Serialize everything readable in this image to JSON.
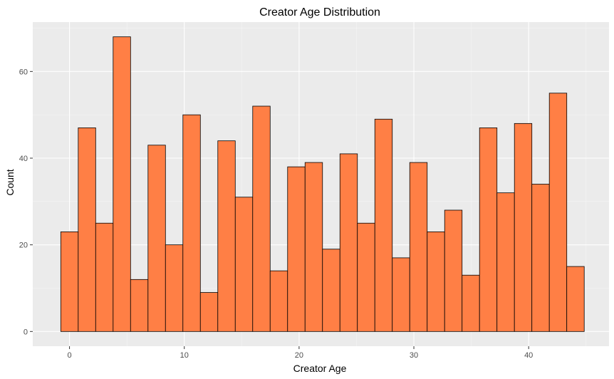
{
  "chart_data": {
    "type": "bar",
    "subtype": "histogram",
    "title": "Creator Age Distribution",
    "xlabel": "Creator Age",
    "ylabel": "Count",
    "bin_width": 1.52,
    "bin_start": -0.76,
    "values": [
      23,
      47,
      25,
      68,
      12,
      43,
      20,
      50,
      9,
      44,
      31,
      52,
      14,
      38,
      39,
      19,
      41,
      25,
      49,
      17,
      39,
      23,
      28,
      13,
      47,
      32,
      48,
      34,
      55,
      15
    ],
    "xlim": [
      -3.2,
      47.0
    ],
    "ylim": [
      -3.4,
      71.4
    ],
    "x_ticks": [
      0,
      10,
      20,
      30,
      40
    ],
    "y_ticks": [
      0,
      20,
      40,
      60
    ],
    "grid": true,
    "legend": "none",
    "colors": {
      "bar_fill": "#FF7F45",
      "bar_stroke": "#000000",
      "panel_background": "#EBEBEB",
      "grid_major": "#FFFFFF",
      "grid_minor": "#F5F5F5"
    }
  }
}
